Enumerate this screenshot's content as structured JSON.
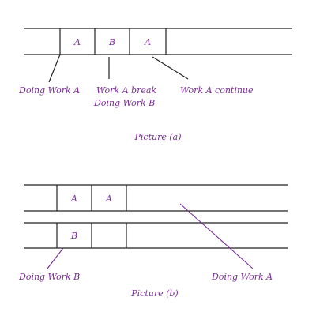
{
  "picture_a": {
    "cells": [
      "A",
      "B",
      "A"
    ],
    "labels": {
      "doing_a": "Doing Work A",
      "break_line1": "Work A break",
      "break_line2": "Doing Work B",
      "continue": "Work A continue"
    },
    "caption": "Picture (a)"
  },
  "picture_b": {
    "top_cells": [
      "A",
      "A"
    ],
    "bottom_cells": [
      "B",
      ""
    ],
    "labels": {
      "doing_b": "Doing Work B",
      "doing_a": "Doing Work A"
    },
    "caption": "Picture (b)"
  },
  "colors": {
    "ink": "#222222",
    "annotation": "#7a2a9a"
  }
}
